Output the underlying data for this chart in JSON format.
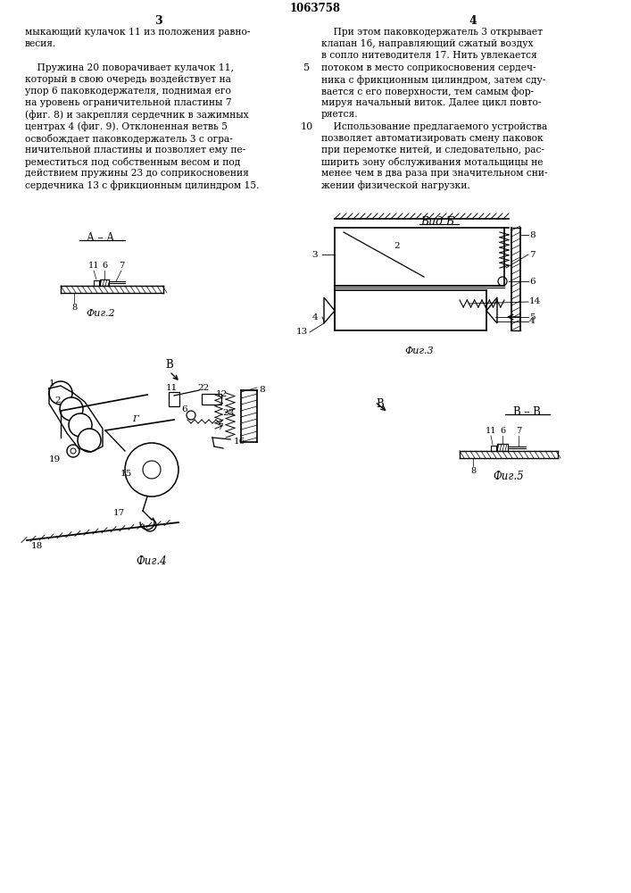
{
  "page_number": "1063758",
  "col_left_number": "3",
  "col_right_number": "4",
  "col_left_text": [
    "мыкающий кулачок 11 из положения равно-",
    "весия.",
    "",
    "    Пружина 20 поворачивает кулачок 11,",
    "который в свою очередь воздействует на",
    "упор 6 паковкодержателя, поднимая его",
    "на уровень ограничительной пластины 7",
    "(фиг. 8) и закрепляя сердечник в зажимных",
    "центрах 4 (фиг. 9). Отклоненная ветвь 5",
    "освобождает паковкодержатель 3 с огра-",
    "ничительной пластины и позволяет ему пе-",
    "реместиться под собственным весом и под",
    "действием пружины 23 до соприкосновения",
    "сердечника 13 с фрикционным цилиндром 15."
  ],
  "col_right_text": [
    "    При этом паковкодержатель 3 открывает",
    "клапан 16, направляющий сжатый воздух",
    "в сопло нитеводителя 17. Нить увлекается",
    "потоком в место соприкосновения сердеч-",
    "ника с фрикционным цилиндром, затем сду-",
    "вается с его поверхности, тем самым фор-",
    "мируя начальный виток. Далее цикл повто-",
    "ряется.",
    "    Использование предлагаемого устройства",
    "позволяет автоматизировать смену паковок",
    "при перемотке нитей, и следовательно, рас-",
    "ширить зону обслуживания мотальщицы не",
    "менее чем в два раза при значительном сни-",
    "жении физической нагрузки."
  ],
  "bg_color": "#ffffff",
  "line_color": "#000000",
  "text_color": "#000000"
}
